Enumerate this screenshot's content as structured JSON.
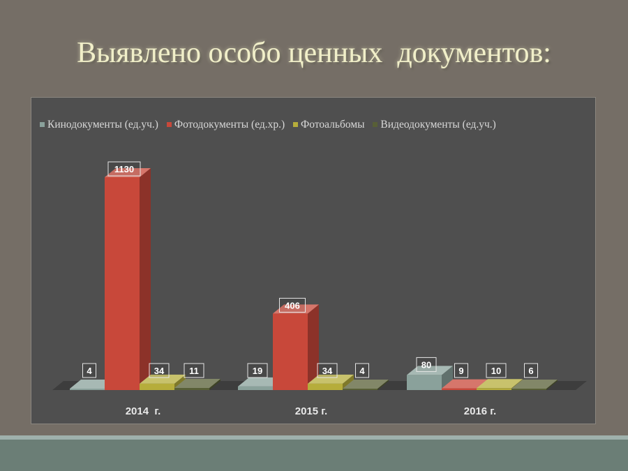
{
  "slide": {
    "title": "Выявлено особо ценных  документов:"
  },
  "chart_data": {
    "type": "bar",
    "categories": [
      "2014  г.",
      "2015 г.",
      "2016 г."
    ],
    "series": [
      {
        "name": "Кинодокументы (ед.уч.)",
        "values": [
          4,
          19,
          80
        ],
        "color": "#8aa19b"
      },
      {
        "name": "Фотодокументы (ед.хр.)",
        "values": [
          1130,
          406,
          9
        ],
        "color": "#c8483a"
      },
      {
        "name": "Фотоальбомы",
        "values": [
          34,
          34,
          10
        ],
        "color": "#b6ad3b"
      },
      {
        "name": "Видеодокументы (ед.уч.)",
        "values": [
          11,
          4,
          6
        ],
        "color": "#585f36"
      }
    ],
    "ylim": [
      0,
      1130
    ],
    "legend": "top",
    "grid": false,
    "style": "3d-clustered-column"
  }
}
